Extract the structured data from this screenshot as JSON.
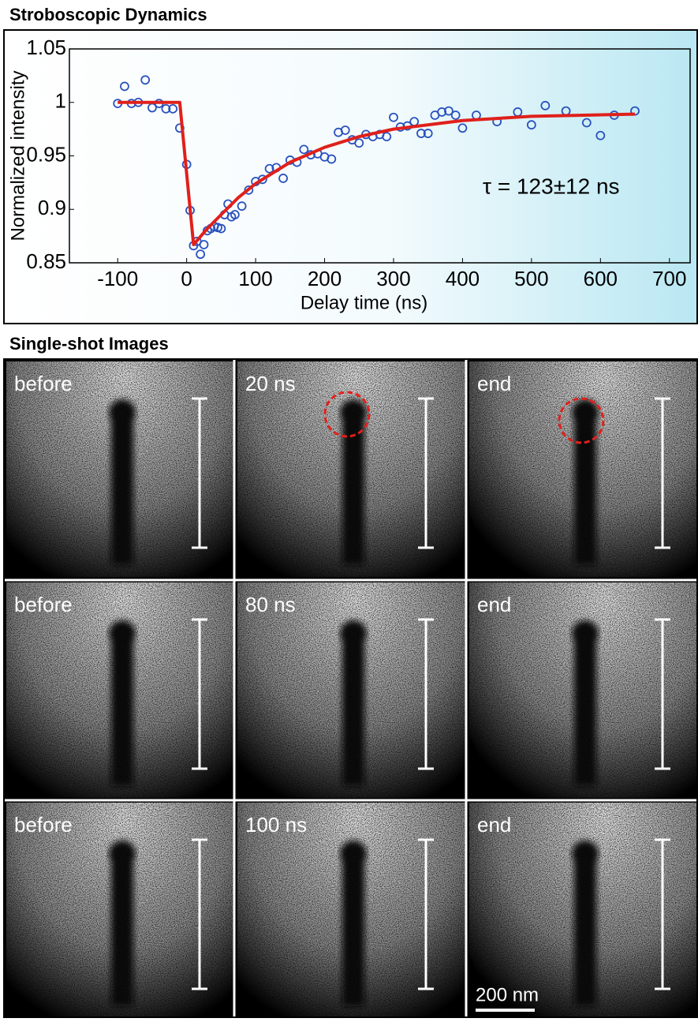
{
  "chart_data": {
    "type": "scatter",
    "title": "Stroboscopic Dynamics",
    "x_label": "Delay time (ns)",
    "y_label": "Normalized intensity",
    "annotation": "τ = 123±12 ns",
    "xlim": [
      -170,
      730
    ],
    "xticks": [
      -100,
      0,
      100,
      200,
      300,
      400,
      500,
      600,
      700
    ],
    "ylim": [
      0.85,
      1.05
    ],
    "yticks": [
      0.85,
      0.9,
      0.95,
      1,
      1.05
    ],
    "series": [
      {
        "type": "scatter",
        "color": "#2a52be",
        "x": [
          -100,
          -90,
          -80,
          -70,
          -60,
          -50,
          -40,
          -30,
          -20,
          -10,
          0,
          5,
          10,
          15,
          20,
          25,
          30,
          35,
          40,
          45,
          50,
          55,
          60,
          65,
          70,
          80,
          90,
          100,
          110,
          120,
          130,
          140,
          150,
          160,
          170,
          180,
          190,
          200,
          210,
          220,
          230,
          240,
          250,
          260,
          270,
          280,
          290,
          300,
          310,
          320,
          330,
          340,
          350,
          360,
          370,
          380,
          390,
          400,
          420,
          450,
          480,
          500,
          520,
          550,
          580,
          600,
          620,
          650
        ],
        "values": [
          0.999,
          1.015,
          0.999,
          1.0,
          1.021,
          0.995,
          0.999,
          0.994,
          0.994,
          0.976,
          0.942,
          0.899,
          0.866,
          0.87,
          0.858,
          0.867,
          0.88,
          0.882,
          0.884,
          0.883,
          0.882,
          0.895,
          0.905,
          0.893,
          0.895,
          0.903,
          0.918,
          0.926,
          0.928,
          0.938,
          0.939,
          0.929,
          0.946,
          0.944,
          0.956,
          0.951,
          0.952,
          0.949,
          0.947,
          0.972,
          0.974,
          0.965,
          0.962,
          0.97,
          0.968,
          0.97,
          0.968,
          0.986,
          0.977,
          0.978,
          0.982,
          0.971,
          0.971,
          0.988,
          0.991,
          0.992,
          0.988,
          0.976,
          0.988,
          0.982,
          0.991,
          0.979,
          0.997,
          0.992,
          0.981,
          0.969,
          0.988,
          0.992
        ]
      },
      {
        "type": "line",
        "color": "#e0201b",
        "x": [
          -100,
          -10,
          10,
          30,
          50,
          75,
          100,
          150,
          200,
          250,
          300,
          400,
          500,
          650
        ],
        "values": [
          1.0,
          1.0,
          0.867,
          0.882,
          0.895,
          0.911,
          0.924,
          0.944,
          0.958,
          0.968,
          0.975,
          0.983,
          0.987,
          0.989
        ]
      }
    ]
  },
  "images": {
    "title": "Single-shot Images",
    "panels": [
      [
        "before",
        "20 ns",
        "end"
      ],
      [
        "before",
        "80 ns",
        "end"
      ],
      [
        "before",
        "100 ns",
        "end"
      ]
    ],
    "scale_bar": "200 nm"
  }
}
